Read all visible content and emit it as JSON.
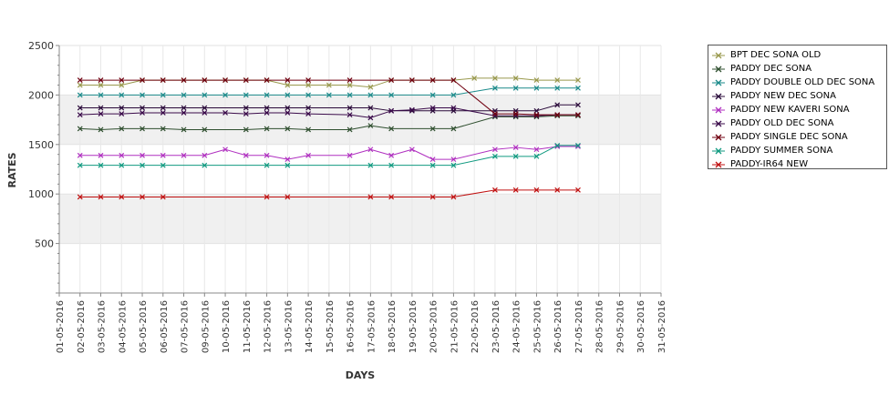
{
  "chart_data": {
    "type": "line",
    "title": "",
    "xlabel": "DAYS",
    "ylabel": "RATES",
    "ylim": [
      0,
      2500
    ],
    "yticks": [
      500,
      1000,
      1500,
      2000,
      2500
    ],
    "categories": [
      "01-05-2016",
      "02-05-2016",
      "03-05-2016",
      "04-05-2016",
      "05-05-2016",
      "06-05-2016",
      "07-05-2016",
      "09-05-2016",
      "10-05-2016",
      "11-05-2016",
      "12-05-2016",
      "13-05-2016",
      "14-05-2016",
      "15-05-2016",
      "16-05-2016",
      "17-05-2016",
      "18-05-2016",
      "19-05-2016",
      "20-05-2016",
      "21-05-2016",
      "22-05-2016",
      "23-05-2016",
      "24-05-2016",
      "25-05-2016",
      "26-05-2016",
      "27-05-2016",
      "28-05-2016",
      "29-05-2016",
      "30-05-2016",
      "31-05-2016"
    ],
    "grid": "alternating horizontal bands",
    "legend_position": "right",
    "series": [
      {
        "name": "BPT DEC SONA OLD",
        "color": "#99994d",
        "values": [
          null,
          2100,
          2100,
          2100,
          2150,
          2150,
          2150,
          2150,
          2150,
          2150,
          2150,
          2100,
          2100,
          2100,
          2100,
          2080,
          2150,
          2150,
          2150,
          2150,
          2170,
          2170,
          2170,
          2150,
          2150,
          2150,
          null,
          null,
          null,
          null
        ]
      },
      {
        "name": "PADDY DEC SONA",
        "color": "#2f4f2f",
        "values": [
          null,
          1660,
          1650,
          1660,
          1660,
          1660,
          1650,
          1650,
          null,
          1650,
          1660,
          1660,
          1650,
          null,
          1650,
          1690,
          1660,
          null,
          1660,
          1660,
          null,
          1780,
          1780,
          1780,
          1790,
          1790,
          null,
          null,
          null,
          null
        ]
      },
      {
        "name": "PADDY DOUBLE OLD DEC SONA",
        "color": "#1a8a8a",
        "values": [
          null,
          2000,
          2000,
          2000,
          2000,
          2000,
          2000,
          2000,
          2000,
          2000,
          2000,
          2000,
          2000,
          2000,
          2000,
          2000,
          2000,
          null,
          2000,
          2000,
          null,
          2070,
          2070,
          2070,
          2070,
          2070,
          null,
          null,
          null,
          null
        ]
      },
      {
        "name": "PADDY NEW DEC SONA",
        "color": "#2a0a3a",
        "values": [
          null,
          1870,
          1870,
          1870,
          1870,
          1870,
          1870,
          1870,
          null,
          1870,
          1870,
          1870,
          1870,
          null,
          1870,
          1870,
          1840,
          1840,
          1840,
          1840,
          null,
          1840,
          1840,
          1840,
          1900,
          1900,
          null,
          null,
          null,
          null
        ]
      },
      {
        "name": "PADDY NEW KAVERI SONA",
        "color": "#b030c0",
        "values": [
          null,
          1390,
          1390,
          1390,
          1390,
          1390,
          1390,
          1390,
          1450,
          1390,
          1390,
          1350,
          1390,
          null,
          1390,
          1450,
          1390,
          1450,
          1350,
          1350,
          null,
          1450,
          1470,
          1450,
          1480,
          1480,
          null,
          null,
          null,
          null
        ]
      },
      {
        "name": "PADDY OLD DEC SONA",
        "color": "#3a0a4a",
        "values": [
          null,
          1800,
          1810,
          1810,
          1820,
          1820,
          1820,
          1820,
          1820,
          1810,
          1820,
          1820,
          1810,
          null,
          1800,
          1770,
          1840,
          1850,
          1870,
          1870,
          null,
          1790,
          1790,
          1790,
          1800,
          1800,
          null,
          null,
          null,
          null
        ]
      },
      {
        "name": "PADDY SINGLE DEC SONA",
        "color": "#700010",
        "values": [
          null,
          2150,
          2150,
          2150,
          2150,
          2150,
          2150,
          2150,
          2150,
          2150,
          2150,
          2150,
          2150,
          null,
          2150,
          null,
          2150,
          2150,
          2150,
          2150,
          null,
          1810,
          1810,
          1800,
          1800,
          1800,
          null,
          null,
          null,
          null
        ]
      },
      {
        "name": "PADDY SUMMER SONA",
        "color": "#109a80",
        "values": [
          null,
          1290,
          1290,
          1290,
          1290,
          1290,
          null,
          1290,
          null,
          null,
          1290,
          1290,
          null,
          null,
          null,
          1290,
          1290,
          null,
          1290,
          1290,
          null,
          1380,
          1380,
          1380,
          1490,
          1490,
          null,
          null,
          null,
          null
        ]
      },
      {
        "name": "PADDY-IR64 NEW",
        "color": "#c01010",
        "values": [
          null,
          970,
          970,
          970,
          970,
          970,
          null,
          null,
          null,
          null,
          970,
          970,
          null,
          null,
          null,
          970,
          970,
          null,
          970,
          970,
          null,
          1040,
          1040,
          1040,
          1040,
          1040,
          null,
          null,
          null,
          null
        ]
      }
    ]
  }
}
